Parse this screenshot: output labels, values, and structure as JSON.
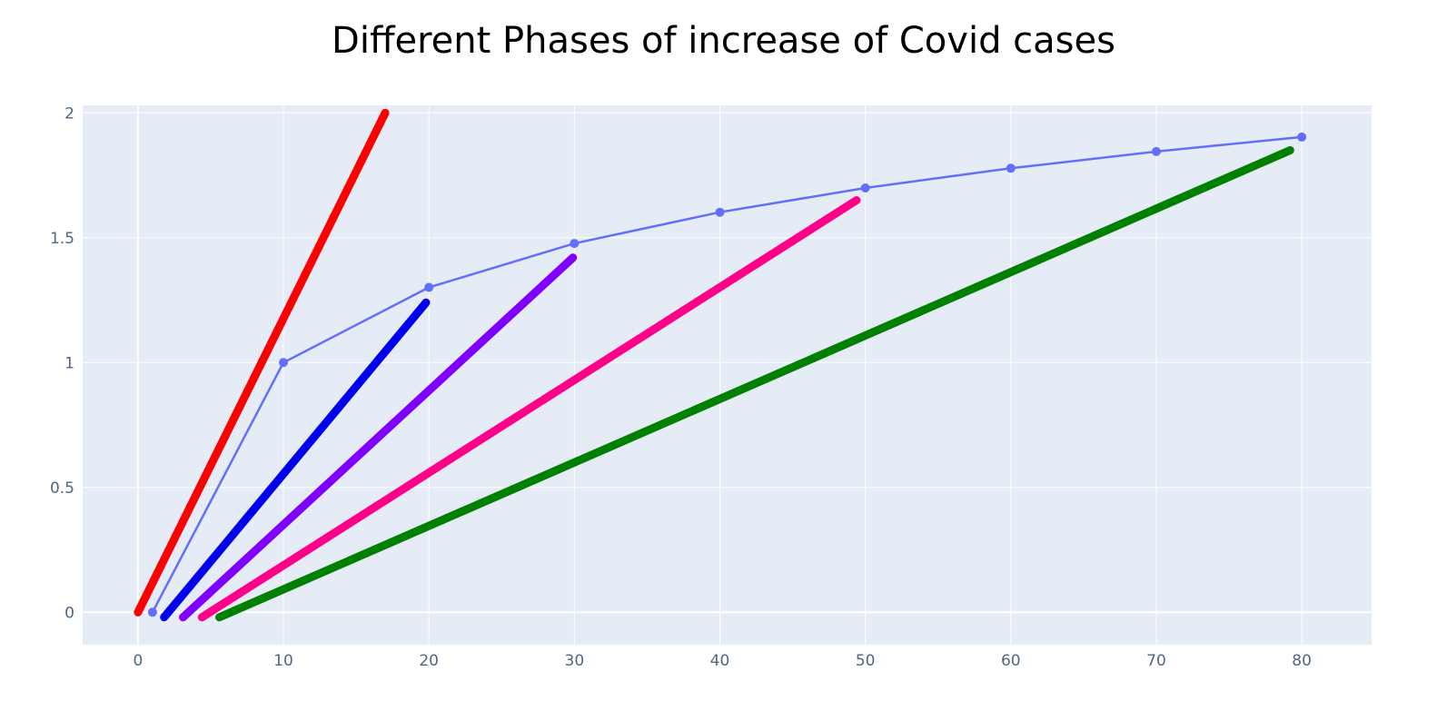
{
  "chart_data": {
    "type": "line",
    "title": "Different Phases of increase of Covid cases",
    "xlabel": "",
    "ylabel": "",
    "xlim": [
      -3.8,
      84.8
    ],
    "ylim": [
      -0.13,
      2.03
    ],
    "grid": true,
    "x_ticks": [
      0,
      10,
      20,
      30,
      40,
      50,
      60,
      70,
      80
    ],
    "x_tick_labels": [
      "0",
      "10",
      "20",
      "30",
      "40",
      "50",
      "60",
      "70",
      "80"
    ],
    "y_ticks": [
      0,
      0.5,
      1,
      1.5,
      2
    ],
    "y_tick_labels": [
      "0",
      "0.5",
      "1",
      "1.5",
      "2"
    ],
    "series": [
      {
        "color": "#636efa",
        "mode": "lines+markers",
        "x": [
          1,
          10,
          20,
          30,
          40,
          50,
          60,
          70,
          80
        ],
        "y": [
          0,
          1,
          1.301,
          1.477,
          1.602,
          1.699,
          1.778,
          1.845,
          1.903
        ]
      },
      {
        "color": "#ff0000",
        "mode": "lines",
        "x": [
          0,
          17
        ],
        "y": [
          0,
          2.0
        ]
      },
      {
        "color": "#0000ee",
        "mode": "lines",
        "x": [
          1.8,
          19.8
        ],
        "y": [
          -0.02,
          1.24
        ]
      },
      {
        "color": "#7f00ff",
        "mode": "lines",
        "x": [
          3.1,
          29.9
        ],
        "y": [
          -0.02,
          1.42
        ]
      },
      {
        "color": "#ff0088",
        "mode": "lines",
        "x": [
          4.4,
          49.4
        ],
        "y": [
          -0.02,
          1.65
        ]
      },
      {
        "color": "#008000",
        "mode": "lines",
        "x": [
          5.6,
          79.2
        ],
        "y": [
          -0.02,
          1.85
        ]
      }
    ]
  },
  "colors": {
    "plot_background": "#e5ecf6",
    "grid": "#ffffff",
    "tick_text": "#506784"
  }
}
